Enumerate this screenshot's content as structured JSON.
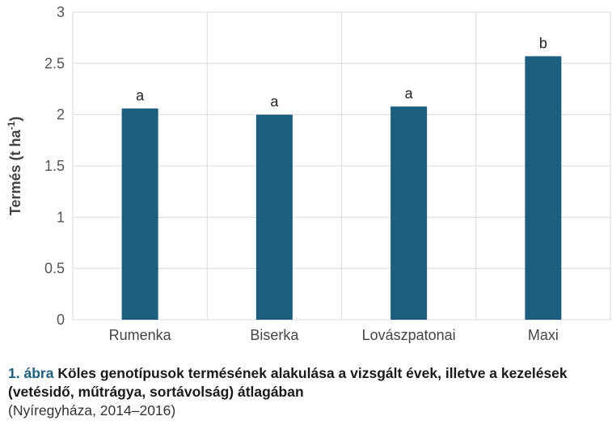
{
  "chart_data": {
    "type": "bar",
    "categories": [
      "Rumenka",
      "Biserka",
      "Lovászpatonai",
      "Maxi"
    ],
    "values": [
      2.06,
      2.0,
      2.08,
      2.57
    ],
    "data_labels": [
      "a",
      "a",
      "a",
      "b"
    ],
    "ylabel": "Termés (t ha",
    "ylabel_superscript": "-1",
    "ylabel_suffix": ")",
    "ylim": [
      0,
      3
    ],
    "yticks": [
      "0",
      "0.5",
      "1",
      "1.5",
      "2",
      "2.5",
      "3"
    ],
    "grid": true,
    "bar_color": "#1b5e80"
  },
  "caption": {
    "number": "1. ábra",
    "title": "Köles genotípusok termésének alakulása a vizsgált évek, illetve a kezelések (vetésidő, műtrágya, sortávolság) átlagában",
    "subtitle": "(Nyíregyháza, 2014–2016)"
  }
}
